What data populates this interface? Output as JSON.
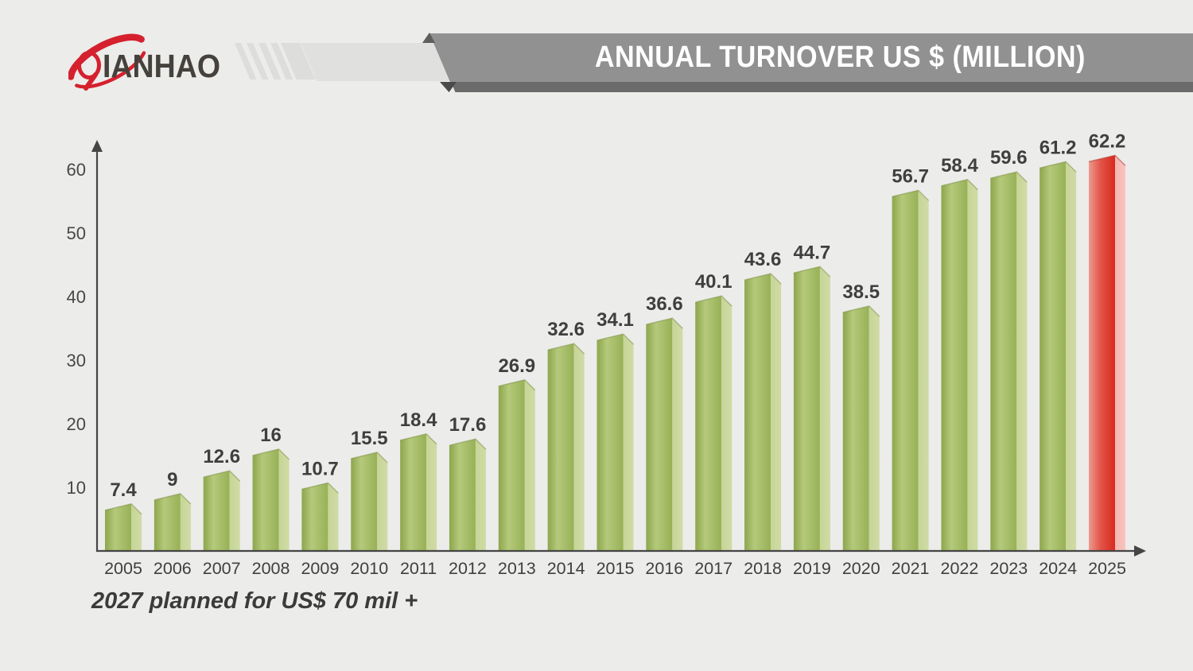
{
  "header": {
    "logo": {
      "brand": "QIANHAO",
      "swoosh_color": "#D5202E",
      "text_color": "#45413D"
    },
    "title": "ANNUAL TURNOVER US $ (MILLION)",
    "banner_color": "#919191",
    "banner_shadow_color": "#6B6B6B"
  },
  "footnote": "2027 planned for US$ 70 mil +",
  "chart_data": {
    "type": "bar",
    "title": "ANNUAL TURNOVER US $ (MILLION)",
    "categories": [
      "2005",
      "2006",
      "2007",
      "2008",
      "2009",
      "2010",
      "2011",
      "2012",
      "2013",
      "2014",
      "2015",
      "2016",
      "2017",
      "2018",
      "2019",
      "2020",
      "2021",
      "2022",
      "2023",
      "2024",
      "2025"
    ],
    "values": [
      7.4,
      9,
      12.6,
      16,
      10.7,
      15.5,
      18.4,
      17.6,
      26.9,
      32.6,
      34.1,
      36.6,
      40.1,
      43.6,
      44.7,
      38.5,
      56.7,
      58.4,
      59.6,
      61.2,
      62.2
    ],
    "labels": [
      "7.4",
      "9",
      "12.6",
      "16",
      "10.7",
      "15.5",
      "18.4",
      "17.6",
      "26.9",
      "32.6",
      "34.1",
      "36.6",
      "40.1",
      "43.6",
      "44.7",
      "38.5",
      "56.7",
      "58.4",
      "59.6",
      "61.2",
      "62.2"
    ],
    "xlabel": "",
    "ylabel": "",
    "ylim": [
      0,
      65
    ],
    "yticks": [
      10,
      20,
      30,
      40,
      50,
      60
    ],
    "grid": false,
    "legend": false,
    "bar_color": "#9FB85E",
    "bar_side_color": "#C9D79D",
    "highlight_category": "2025",
    "highlight_color": "#DC2F23",
    "highlight_side_color": "#F5B7B3",
    "axis_color": "#454545"
  }
}
